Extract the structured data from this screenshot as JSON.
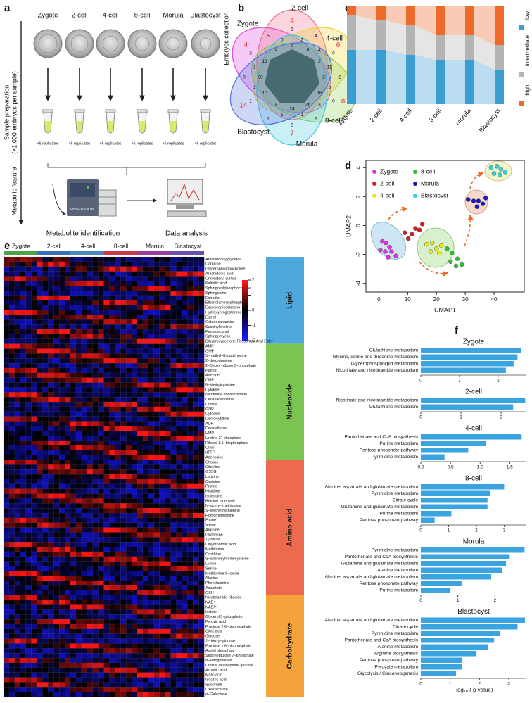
{
  "labels": [
    "a",
    "b",
    "c",
    "d",
    "e",
    "f"
  ],
  "panel_a": {
    "stages": [
      "Zygote",
      "2-cell",
      "4-cell",
      "8-cell",
      "Morula",
      "Blastocyst"
    ],
    "replicates": [
      "×6 replicates",
      "×6 replicates",
      "×6 replicates",
      "×6 replicates",
      "×6 replicates",
      "×6 replicates"
    ],
    "step_collection": "Embryos collection",
    "step_preparation": "Sample preparation",
    "step_preparation_note": "(×1,000 embryos per sample)",
    "step_feature": "Metabolic feature",
    "instrument": "UHPLC-Q-TOF MS",
    "outputs": [
      "Metabolite identification",
      "Data analysis"
    ]
  },
  "panel_b": {
    "sets": [
      "Zygote",
      "2-cell",
      "4-cell",
      "8-cell",
      "Morula",
      "Blastocyst"
    ],
    "set_colors": [
      "#e040e0",
      "#f06a8a",
      "#f0d030",
      "#8ad04a",
      "#40c8e0",
      "#5070e0"
    ],
    "unique_counts": [
      4,
      4,
      6,
      8,
      7,
      14
    ],
    "unique_color": "#e03030",
    "shared_counts": [
      2,
      0,
      2,
      3,
      1,
      1,
      0,
      3,
      5,
      1,
      4,
      0,
      3,
      3,
      1,
      1,
      1,
      1,
      1,
      1,
      0,
      2,
      4,
      11,
      16,
      26,
      24,
      8,
      10,
      20,
      13,
      4,
      5,
      0,
      2,
      2
    ]
  },
  "chart_data": [
    {
      "type": "alluvial",
      "categories": [
        "Zygote",
        "2-cell",
        "4-cell",
        "8-cell",
        "morula",
        "Blastocyst"
      ],
      "series": [
        {
          "name": "low",
          "color": "#3a9fd0",
          "values": [
            55,
            55,
            50,
            45,
            45,
            35
          ]
        },
        {
          "name": "intermediate",
          "color": "#b4b4b4",
          "values": [
            35,
            30,
            30,
            25,
            25,
            25
          ]
        },
        {
          "name": "high",
          "color": "#ee6a2a",
          "values": [
            10,
            15,
            20,
            30,
            30,
            40
          ]
        }
      ]
    },
    {
      "type": "scatter",
      "xlabel": "UMAP1",
      "ylabel": "UMAP2",
      "xlim": [
        -4.5,
        50.5
      ],
      "ylim": [
        -4.6,
        4.5
      ],
      "xticks": [
        0,
        10,
        20,
        30,
        40
      ],
      "yticks": [
        4,
        2,
        0,
        -2,
        -4
      ],
      "legend": "upper left",
      "series": [
        {
          "name": "Zygote",
          "color": "#e030e0",
          "x": [
            1.2,
            2.4,
            3.7,
            0.5,
            2.2,
            4.4,
            5.9,
            3.2
          ],
          "y": [
            -1.1,
            -1.2,
            -1.5,
            -1.7,
            -1.8,
            -1.8,
            -2.1,
            -2.2
          ]
        },
        {
          "name": "2-cell",
          "color": "#d42020",
          "x": [
            9,
            11.5,
            12.7,
            14.1,
            15.1,
            10.2
          ],
          "y": [
            -0.5,
            -0.6,
            -0.2,
            -0.3,
            0.1,
            -0.9
          ]
        },
        {
          "name": "4-cell",
          "color": "#e8e820",
          "x": [
            16.6,
            18.5,
            20,
            21.7,
            18,
            21
          ],
          "y": [
            -1.3,
            -1.2,
            -1.6,
            -1.4,
            -1.8,
            -1.9
          ]
        },
        {
          "name": "8-cell",
          "color": "#30c030",
          "x": [
            23.7,
            25.4,
            27.3,
            28.8,
            24.9,
            26.8
          ],
          "y": [
            -1.6,
            -1.9,
            -2.3,
            -2.7,
            -2.5,
            -2.8
          ]
        },
        {
          "name": "Morula",
          "color": "#1a1ab8",
          "x": [
            31,
            32.9,
            34.6,
            36.1,
            34.1,
            37.1
          ],
          "y": [
            1.8,
            1.7,
            1.7,
            1.5,
            1.3,
            1.9
          ]
        },
        {
          "name": "Blastocyst",
          "color": "#30d8d8",
          "x": [
            39,
            41,
            42.4,
            40,
            42,
            43.9
          ],
          "y": [
            4,
            4.1,
            3.9,
            3.6,
            3.5,
            3.7
          ]
        }
      ]
    },
    {
      "type": "bar",
      "orientation": "horizontal",
      "title": "Zygote",
      "color": "#3aa4e0",
      "categories": [
        "Glutathione metabolism",
        "Glycine, serine and threonine metabolism",
        "Glycerophospholipid metabolism",
        "Nicotinate and nicotinamide metabolism"
      ],
      "values": [
        2.6,
        2.5,
        2.4,
        2.2
      ],
      "xlim": [
        0,
        2.73
      ],
      "xticks": [
        0,
        1,
        2
      ]
    },
    {
      "type": "bar",
      "orientation": "horizontal",
      "title": "2-cell",
      "color": "#3aa4e0",
      "categories": [
        "Nicotinate and nicotinamide metabolism",
        "Glutathione metabolism"
      ],
      "values": [
        2.6,
        2.3
      ],
      "xlim": [
        0,
        2.63
      ],
      "xticks": [
        0,
        1,
        2
      ]
    },
    {
      "type": "bar",
      "orientation": "horizontal",
      "title": "4-cell",
      "color": "#3aa4e0",
      "categories": [
        "Pantothenate and CoA biosynthesis",
        "Purine metabolism",
        "Pentose phosphate pathway",
        "Pyrimidine metabolism"
      ],
      "values": [
        1.7,
        1.1,
        0.8,
        0.4
      ],
      "xlim": [
        0,
        1.78
      ],
      "xticks": [
        {
          "value": 0,
          "label": "0.0"
        },
        0.5,
        {
          "value": 1,
          "label": "1.0"
        },
        1.5
      ]
    },
    {
      "type": "bar",
      "orientation": "horizontal",
      "title": "8-cell",
      "color": "#3aa4e0",
      "categories": [
        "Alanine, aspartate and glutamate metabolism",
        "Pyrimidine metabolism",
        "Citrate cycle",
        "Glutamine and glutamate metabolism",
        "Purine metabolism",
        "Pentose phosphate pathway"
      ],
      "values": [
        3,
        2.5,
        2.4,
        2.4,
        1.1,
        0.5
      ],
      "xlim": [
        0,
        3.8
      ],
      "xticks": [
        0,
        1,
        2,
        3
      ]
    },
    {
      "type": "bar",
      "orientation": "horizontal",
      "title": "Morula",
      "color": "#3aa4e0",
      "categories": [
        "Pyrimidine metabolism",
        "Pantothenate and CoA biosynthesis",
        "Glutamine and glutamate metabolism",
        "Alanine metabolism",
        "Alanine, aspartate and glutamate metabolism",
        "Pentose phosphate pathway",
        "Purine metabolism"
      ],
      "values": [
        2.8,
        2.4,
        2.3,
        2.2,
        1.9,
        1.1,
        0.8
      ],
      "xlim": [
        0,
        2.85
      ],
      "xticks": [
        0,
        1,
        2
      ]
    },
    {
      "type": "bar",
      "orientation": "horizontal",
      "title": "Blastocyst",
      "color": "#3aa4e0",
      "categories": [
        "Alanine, aspartate and glutamate metabolism",
        "Citrate cycle",
        "Pyrimidine metabolism",
        "Pantothenate and CoA biosynthesis",
        "Alanine metabolism",
        "Arginine biosynthesis",
        "Pentose phosphate pathway",
        "Pyruvate metabolism",
        "Glycolysis / Gluconeogenesis"
      ],
      "values": [
        3.55,
        3.3,
        2.7,
        2.5,
        2.3,
        1.9,
        1.4,
        1.4,
        1.2
      ],
      "xlim": [
        0,
        3.6
      ],
      "xticks": [
        0,
        1,
        2,
        3
      ],
      "xlabel": "-log₁₀ ( p value)"
    }
  ],
  "panel_e": {
    "stages": [
      "Zygote",
      "2-cell",
      "4-cell",
      "8-cell",
      "Morula",
      "Blastocyst"
    ],
    "stage_colors": [
      "#4ea24a",
      "#3a70b5",
      "#4b8ac0",
      "#c8384a",
      "#9b3e9a",
      "#6a4fb0"
    ],
    "colorbar_ticks": [
      2,
      1,
      0,
      -1,
      -2
    ],
    "groups": [
      {
        "name": "Lipid",
        "color": "#4fa8da",
        "metabolites": [
          "Arachidonoylglycerol",
          "Carnitine",
          "Glycerophosphocholine",
          "Arachidonic acid",
          "Cholesteryl sulfate",
          "Palmitic acid",
          "Sphingosylphosphocholine",
          "Sphingosine",
          "Estradiol",
          "Ethanolamine phosphate",
          "Deoxycorticosterone",
          "Hydroxyprogesterone",
          "Estriol",
          "Octadecanamide",
          "Succinylcholine",
          "Pentadecanal",
          "Sphingomyelin",
          "Dihydroxyacetone Phosphate Acyl Ester"
        ]
      },
      {
        "name": "Nucleotide",
        "color": "#7cc451",
        "metabolites": [
          "AMP",
          "GMP",
          "5−methyl−thioadenosine",
          "2−deoxyinosine",
          "2−Deoxy−ribose 5−phosphate",
          "Purine",
          "Adenine",
          "CMP",
          "5−Methylcytosine",
          "Cytidine",
          "Nicotinate ribonucleotide",
          "Deoxyadenosine",
          "Uridine",
          "GDP",
          "Cytosine",
          "Deoxycytidine",
          "ADP",
          "Deoxyribose",
          "UMP",
          "Uridine 2′−phosphate",
          "Ribose 1,5−bisphosphate",
          "Uracil",
          "dTTP",
          "Adenosine"
        ]
      },
      {
        "name": "Amino acid",
        "color": "#ec6a4e",
        "metabolites": [
          "Choline",
          "Citrulline",
          "GSSG",
          "Leucine",
          "Cysteine",
          "Proline",
          "Histidine",
          "Isoleucine",
          "Betaine aldehyde",
          "N−acetyl−methionine",
          "S−Methylmethionine",
          "Homomethionine",
          "Folate",
          "Valine",
          "Arginine",
          "Glutamine",
          "Tyrosine",
          "Dihydroorotic acid",
          "Methionine",
          "Ornithine",
          "S−adenosylhomocysteine",
          "Lysine",
          "Serine",
          "Methionine S−oxide",
          "Alanine",
          "Phenylalanine",
          "Aspartate",
          "GSH"
        ]
      },
      {
        "name": "Carbohydrate",
        "color": "#f4a23a",
        "metabolites": [
          "Nicotinamide riboside",
          "NAD⁺",
          "NADP⁺",
          "lactate",
          "Glycerol 3−phosphate",
          "Pyruvic acid",
          "Fructose 2,6−bisphosphate",
          "Citric acid",
          "Glucose",
          "2−deoxy−glucose",
          "Fructose 1,6−bisphosphate",
          "Acetyl phosphate",
          "Sedoheptulose 7−phosphate",
          "α−ketoglutarate",
          "Uridine diphosphate glucose",
          "Aconitic acid",
          "Malic acid",
          "Isocitric acid",
          "Succinate",
          "Oxaloacetate",
          "α−Galactose"
        ]
      }
    ]
  }
}
